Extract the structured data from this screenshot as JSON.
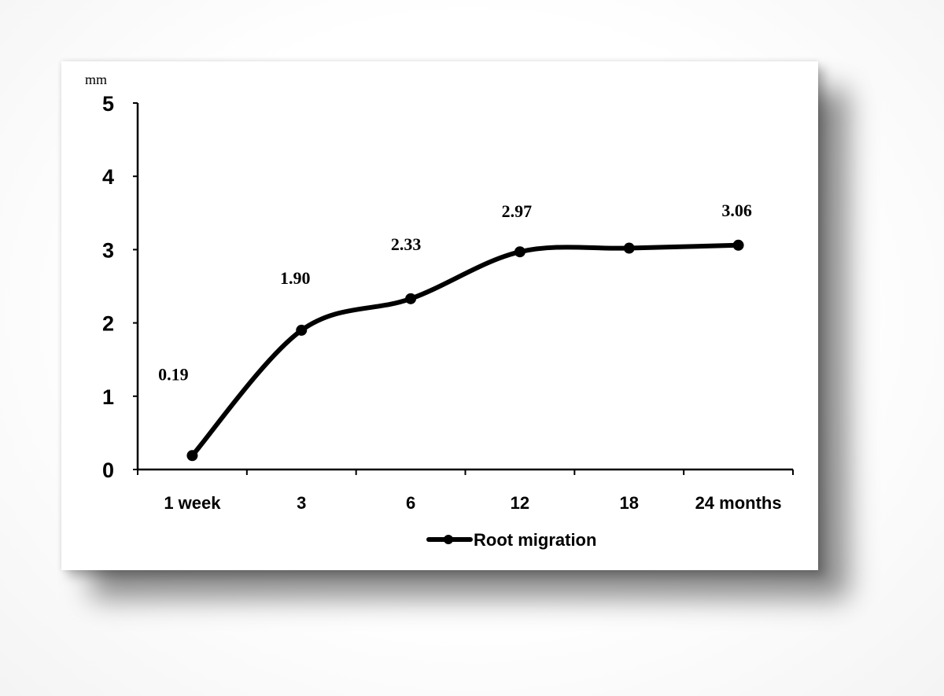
{
  "chart_data": {
    "type": "line",
    "title": "",
    "ylabel": "mm",
    "xlabel": "",
    "ylim": [
      0,
      5
    ],
    "yticks": [
      "0",
      "1",
      "2",
      "3",
      "4",
      "5"
    ],
    "categories": [
      "1 week",
      "3",
      "6",
      "12",
      "18",
      "24 months"
    ],
    "series": [
      {
        "name": "Root migration",
        "values": [
          0.19,
          1.9,
          2.33,
          2.97,
          3.02,
          3.06
        ],
        "data_labels": [
          "0.19",
          "1.90",
          "2.33",
          "2.97",
          "",
          "3.06"
        ]
      }
    ],
    "legend_position": "bottom-center",
    "grid": false,
    "line_color": "#000000"
  }
}
